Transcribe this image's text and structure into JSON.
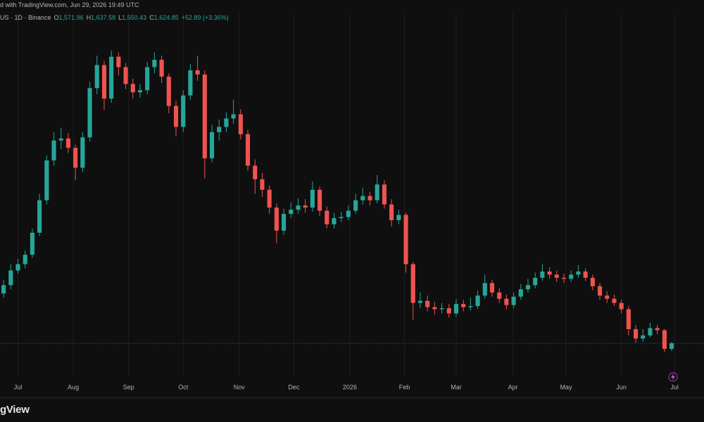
{
  "header": {
    "source": "d with TradingView.com, Jun 29, 2026 19:49 UTC"
  },
  "footer": {
    "brand": "gView"
  },
  "chart_data": {
    "type": "candlestick",
    "symbol": "US · 1D · Binance",
    "ohlc_labels": [
      {
        "key": "O",
        "text": "1,571.96"
      },
      {
        "key": "H",
        "text": "1,637.58"
      },
      {
        "key": "L",
        "text": "1,550.43"
      },
      {
        "key": "C",
        "text": "1,624.85"
      }
    ],
    "change": "+52.89 (+3.36%)",
    "up_color": "#26a69a",
    "down_color": "#ef5350",
    "grid": true,
    "xlim": [
      -0.5,
      97.5
    ],
    "ylim": [
      1310,
      4780
    ],
    "xticks": [
      {
        "value": 2,
        "label": "Jul"
      },
      {
        "value": 9.7,
        "label": "Aug"
      },
      {
        "value": 17.4,
        "label": "Sep"
      },
      {
        "value": 25,
        "label": "Oct"
      },
      {
        "value": 32.8,
        "label": "Nov"
      },
      {
        "value": 40.4,
        "label": "Dec"
      },
      {
        "value": 48.2,
        "label": "2026"
      },
      {
        "value": 55.8,
        "label": "Feb"
      },
      {
        "value": 63,
        "label": "Mar"
      },
      {
        "value": 70.9,
        "label": "Apr"
      },
      {
        "value": 78.3,
        "label": "May"
      },
      {
        "value": 86,
        "label": "Jun"
      },
      {
        "value": 93.4,
        "label": "Jul"
      }
    ],
    "open": [
      2100,
      2180,
      2320,
      2380,
      2470,
      2680,
      2990,
      3370,
      3560,
      3580,
      3490,
      3300,
      3590,
      4060,
      4280,
      3960,
      4360,
      4260,
      4100,
      4020,
      4040,
      4260,
      4330,
      4170,
      3890,
      3690,
      3990,
      4230,
      4190,
      3390,
      3640,
      3690,
      3770,
      3810,
      3620,
      3320,
      3190,
      3090,
      2920,
      2700,
      2860,
      2900,
      2940,
      2920,
      3090,
      2890,
      2760,
      2820,
      2830,
      2890,
      2990,
      3030,
      2990,
      3140,
      2950,
      2800,
      2850,
      2380,
      2010,
      2030,
      1970,
      1950,
      1960,
      1910,
      2000,
      1970,
      1980,
      2080,
      2200,
      2110,
      2050,
      1990,
      2070,
      2140,
      2180,
      2250,
      2310,
      2280,
      2250,
      2240,
      2280,
      2310,
      2250,
      2170,
      2080,
      2050,
      2010,
      1950,
      1760,
      1670,
      1700,
      1770,
      1750,
      1571.96
    ],
    "high": [
      2230,
      2380,
      2430,
      2510,
      2720,
      3050,
      3420,
      3640,
      3680,
      3630,
      3520,
      3640,
      4120,
      4370,
      4320,
      4420,
      4400,
      4300,
      4150,
      4100,
      4310,
      4400,
      4370,
      4200,
      3940,
      4040,
      4290,
      4370,
      4230,
      3710,
      3760,
      3830,
      3950,
      3860,
      3660,
      3380,
      3250,
      3130,
      2960,
      2910,
      2970,
      3010,
      3000,
      3170,
      3120,
      2930,
      2870,
      2880,
      2940,
      3050,
      3110,
      3070,
      3230,
      3180,
      3000,
      2900,
      2870,
      2400,
      2110,
      2080,
      2020,
      2010,
      2000,
      2050,
      2040,
      2060,
      2130,
      2280,
      2230,
      2150,
      2090,
      2110,
      2190,
      2240,
      2300,
      2380,
      2350,
      2320,
      2290,
      2320,
      2370,
      2340,
      2280,
      2200,
      2120,
      2090,
      2040,
      1980,
      1800,
      1760,
      1820,
      1800,
      1760,
      1637.58
    ],
    "low": [
      2060,
      2140,
      2290,
      2340,
      2440,
      2650,
      2950,
      3320,
      3480,
      3440,
      3180,
      3260,
      3550,
      4000,
      3850,
      3920,
      4180,
      4050,
      3960,
      3970,
      4000,
      4200,
      4110,
      3820,
      3600,
      3640,
      3950,
      4130,
      3200,
      3350,
      3560,
      3640,
      3720,
      3570,
      3270,
      3050,
      3020,
      2860,
      2580,
      2660,
      2820,
      2860,
      2870,
      2880,
      2840,
      2720,
      2720,
      2780,
      2800,
      2860,
      2950,
      2940,
      2960,
      2910,
      2740,
      2760,
      2300,
      1850,
      1960,
      1930,
      1900,
      1910,
      1870,
      1880,
      1930,
      1940,
      1950,
      2050,
      2070,
      2010,
      1950,
      1960,
      2040,
      2110,
      2150,
      2220,
      2240,
      2210,
      2200,
      2210,
      2250,
      2220,
      2130,
      2040,
      2010,
      1980,
      1910,
      1700,
      1630,
      1640,
      1680,
      1710,
      1540,
      1550.43
    ],
    "close": [
      2180,
      2320,
      2380,
      2470,
      2680,
      2990,
      3370,
      3560,
      3580,
      3490,
      3300,
      3590,
      4060,
      4280,
      3960,
      4360,
      4260,
      4100,
      4020,
      4040,
      4260,
      4330,
      4170,
      3890,
      3690,
      3990,
      4230,
      4190,
      3390,
      3640,
      3690,
      3770,
      3810,
      3620,
      3320,
      3190,
      3090,
      2920,
      2700,
      2860,
      2900,
      2940,
      2920,
      3090,
      2890,
      2760,
      2820,
      2830,
      2890,
      2990,
      3030,
      2990,
      3140,
      2950,
      2800,
      2850,
      2380,
      2010,
      2030,
      1970,
      1950,
      1960,
      1910,
      2000,
      1970,
      1980,
      2080,
      2200,
      2110,
      2050,
      1990,
      2070,
      2140,
      2180,
      2250,
      2310,
      2280,
      2250,
      2240,
      2280,
      2310,
      2250,
      2170,
      2080,
      2050,
      2010,
      1950,
      1760,
      1670,
      1700,
      1770,
      1750,
      1572,
      1624.85
    ]
  }
}
